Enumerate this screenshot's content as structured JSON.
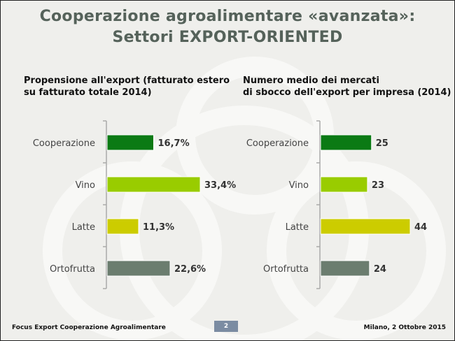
{
  "title_line1": "Cooperazione agroalimentare «avanzata»:",
  "title_line2": "Settori EXPORT-ORIENTED",
  "colors": {
    "Cooperazione": "#0b7a14",
    "Vino": "#99cc00",
    "Latte": "#cccc00",
    "Ortofrutta": "#6b7d6f"
  },
  "chart_data": [
    {
      "type": "bar",
      "orientation": "horizontal",
      "title": "Propensione all'export (fatturato estero su fatturato totale 2014)",
      "title_line1": "Propensione all'export (fatturato estero",
      "title_line2": "su fatturato totale 2014)",
      "categories": [
        "Cooperazione",
        "Vino",
        "Latte",
        "Ortofrutta"
      ],
      "values": [
        16.7,
        33.4,
        11.3,
        22.6
      ],
      "labels": [
        "16,7%",
        "33,4%",
        "11,3%",
        "22,6%"
      ],
      "grid": false
    },
    {
      "type": "bar",
      "orientation": "horizontal",
      "title": "Numero medio dei mercati di sbocco dell'export per impresa (2014)",
      "title_line1": "Numero medio dei mercati",
      "title_line2": "di sbocco dell'export per impresa (2014)",
      "categories": [
        "Cooperazione",
        "Vino",
        "Latte",
        "Ortofrutta"
      ],
      "values": [
        25,
        23,
        44,
        24
      ],
      "labels": [
        "25",
        "23",
        "44",
        "24"
      ],
      "grid": false
    }
  ],
  "footer": {
    "left": "Focus Export Cooperazione Agroalimentare",
    "page": "2",
    "right": "Milano, 2 Ottobre 2015"
  }
}
